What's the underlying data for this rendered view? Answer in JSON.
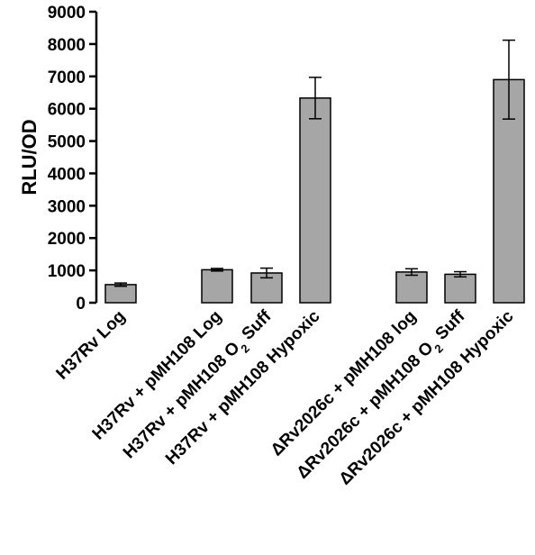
{
  "chart_data": {
    "type": "bar",
    "ylabel": "RLU/OD",
    "xlabel": "",
    "ylim": [
      0,
      9000
    ],
    "yticks": [
      0,
      1000,
      2000,
      3000,
      4000,
      5000,
      6000,
      7000,
      8000,
      9000
    ],
    "grid": false,
    "categories": [
      "H37Rv Log",
      "H37Rv + pMH108 Log",
      "H37Rv + pMH108 O₂ Suff",
      "H37Rv + pMH108 Hypoxic",
      "ΔRv2026c + pMH108 log",
      "ΔRv2026c + pMH108 O₂ Suff",
      "ΔRv2026c + pMH108 Hypoxic"
    ],
    "values": [
      560,
      1020,
      920,
      6330,
      950,
      880,
      6900
    ],
    "error": [
      50,
      40,
      150,
      640,
      100,
      80,
      1220
    ],
    "colors": {
      "bar": "#a6a6a6",
      "edge": "#000000"
    }
  }
}
